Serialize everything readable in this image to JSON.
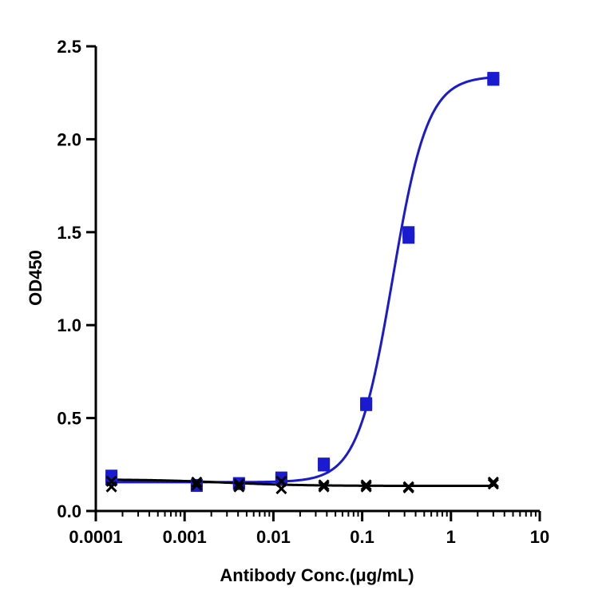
{
  "chart_data": {
    "type": "scatter",
    "title": "",
    "xlabel": "Antibody Conc.(μg/mL)",
    "ylabel": "OD450",
    "x_scale": "log",
    "xlim": [
      0.0001,
      10
    ],
    "ylim": [
      0,
      2.5
    ],
    "x_ticks": [
      {
        "value": 0.0001,
        "label": "0.0001"
      },
      {
        "value": 0.001,
        "label": "0.001"
      },
      {
        "value": 0.01,
        "label": "0.01"
      },
      {
        "value": 0.1,
        "label": "0.1"
      },
      {
        "value": 1,
        "label": "1"
      },
      {
        "value": 10,
        "label": "10"
      }
    ],
    "y_ticks": [
      {
        "value": 0,
        "label": "0.0"
      },
      {
        "value": 0.5,
        "label": "0.5"
      },
      {
        "value": 1.0,
        "label": "1.0"
      },
      {
        "value": 1.5,
        "label": "1.5"
      },
      {
        "value": 2.0,
        "label": "2.0"
      },
      {
        "value": 2.5,
        "label": "2.5"
      }
    ],
    "grid": false,
    "series": [
      {
        "marker": "square",
        "color": "#1a1ad0",
        "points": [
          {
            "x": 0.00015,
            "y": 0.17
          },
          {
            "x": 0.00015,
            "y": 0.19
          },
          {
            "x": 0.00137,
            "y": 0.135
          },
          {
            "x": 0.00137,
            "y": 0.14
          },
          {
            "x": 0.0041,
            "y": 0.145
          },
          {
            "x": 0.0041,
            "y": 0.15
          },
          {
            "x": 0.0123,
            "y": 0.17
          },
          {
            "x": 0.0123,
            "y": 0.18
          },
          {
            "x": 0.037,
            "y": 0.245
          },
          {
            "x": 0.037,
            "y": 0.255
          },
          {
            "x": 0.111,
            "y": 0.57
          },
          {
            "x": 0.111,
            "y": 0.58
          },
          {
            "x": 0.333,
            "y": 1.47
          },
          {
            "x": 0.333,
            "y": 1.5
          },
          {
            "x": 3.0,
            "y": 2.32
          },
          {
            "x": 3.0,
            "y": 2.33
          }
        ],
        "fit": {
          "bottom": 0.155,
          "top": 2.34,
          "ec50": 0.22,
          "hill": 2.2
        }
      },
      {
        "marker": "x",
        "color": "#000000",
        "points": [
          {
            "x": 0.00015,
            "y": 0.13
          },
          {
            "x": 0.00015,
            "y": 0.16
          },
          {
            "x": 0.00137,
            "y": 0.14
          },
          {
            "x": 0.00137,
            "y": 0.155
          },
          {
            "x": 0.0041,
            "y": 0.13
          },
          {
            "x": 0.0041,
            "y": 0.145
          },
          {
            "x": 0.0123,
            "y": 0.12
          },
          {
            "x": 0.0123,
            "y": 0.16
          },
          {
            "x": 0.037,
            "y": 0.13
          },
          {
            "x": 0.037,
            "y": 0.14
          },
          {
            "x": 0.111,
            "y": 0.13
          },
          {
            "x": 0.111,
            "y": 0.14
          },
          {
            "x": 0.333,
            "y": 0.125
          },
          {
            "x": 0.333,
            "y": 0.13
          },
          {
            "x": 3.0,
            "y": 0.145
          },
          {
            "x": 3.0,
            "y": 0.155
          }
        ],
        "fit": {
          "bottom": 0.17,
          "top": 0.135,
          "ec50": 0.003,
          "hill": 1.0
        }
      }
    ]
  }
}
